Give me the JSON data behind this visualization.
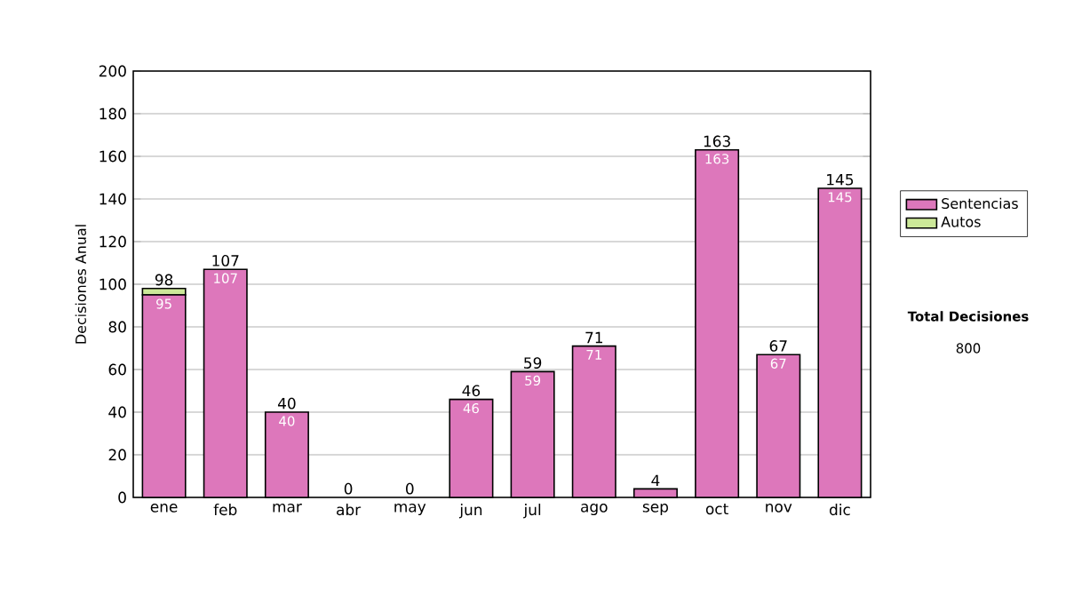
{
  "chart_data": {
    "type": "bar",
    "stacked": true,
    "ylabel": "Decisiones Anual",
    "categories": [
      "ene",
      "feb",
      "mar",
      "abr",
      "may",
      "jun",
      "jul",
      "ago",
      "sep",
      "oct",
      "nov",
      "dic"
    ],
    "series": [
      {
        "name": "Sentencias",
        "color": "#dd77bb",
        "values": [
          95,
          107,
          40,
          0,
          0,
          46,
          59,
          71,
          4,
          163,
          67,
          145
        ],
        "value_labels": [
          "95",
          "107",
          "40",
          null,
          null,
          "46",
          "59",
          "71",
          null,
          "163",
          "67",
          "145"
        ]
      },
      {
        "name": "Autos",
        "color": "#cce899",
        "values": [
          3,
          0,
          0,
          0,
          0,
          0,
          0,
          0,
          0,
          0,
          0,
          0
        ]
      }
    ],
    "totals": [
      "98",
      "107",
      "40",
      "0",
      "0",
      "46",
      "59",
      "71",
      "4",
      "163",
      "67",
      "145"
    ],
    "ylim": [
      0,
      200
    ],
    "yticks": [
      0,
      20,
      40,
      60,
      80,
      100,
      120,
      140,
      160,
      180,
      200
    ],
    "grid": "y",
    "legend": "right",
    "annotations": [
      "Total Decisiones",
      "800"
    ]
  }
}
